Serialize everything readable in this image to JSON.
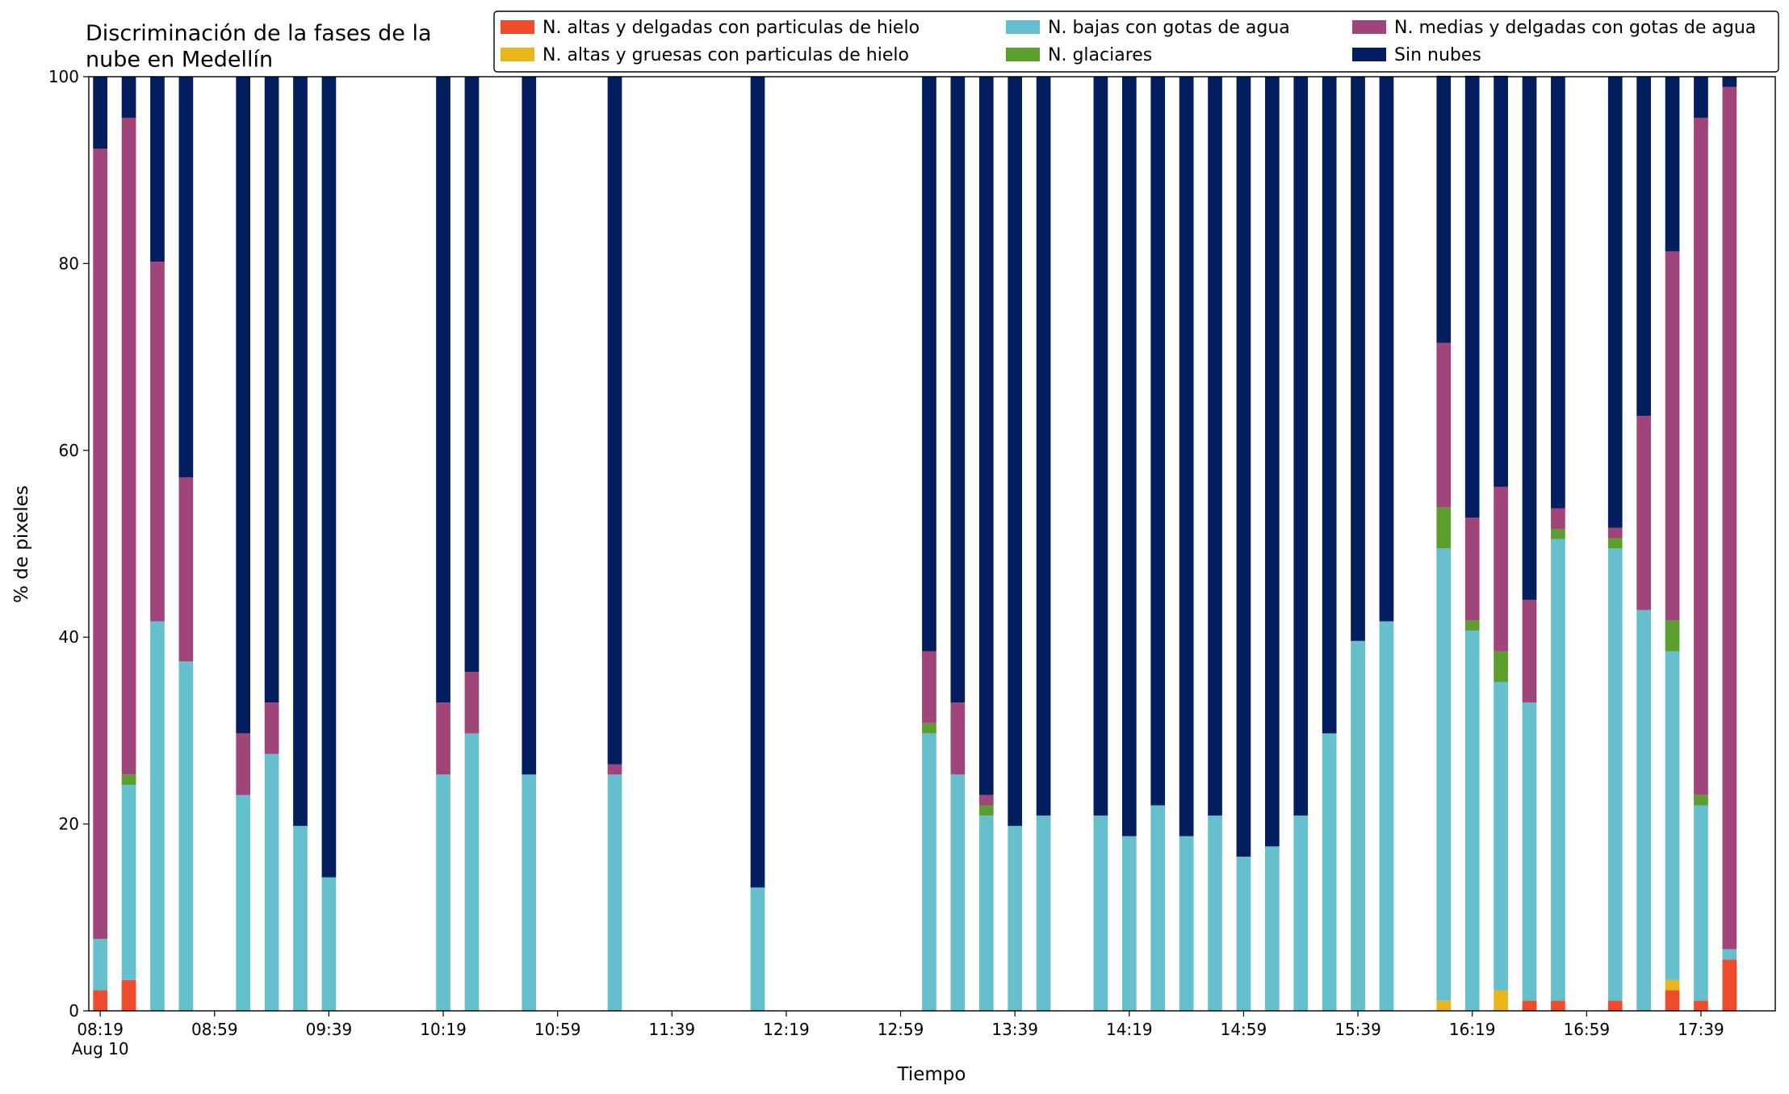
{
  "chart_data": {
    "type": "stacked_bar",
    "title": "Discriminación de la fases de la\nnube en Medellín",
    "xlabel": "Tiempo",
    "ylabel": "% de pixeles",
    "x": [
      "08:19",
      "08:29",
      "08:39",
      "08:49",
      "09:09",
      "09:19",
      "09:29",
      "09:39",
      "10:19",
      "10:29",
      "10:49",
      "11:19",
      "12:09",
      "13:09",
      "13:19",
      "13:29",
      "13:39",
      "13:49",
      "14:09",
      "14:19",
      "14:29",
      "14:39",
      "14:49",
      "14:59",
      "15:09",
      "15:19",
      "15:29",
      "15:39",
      "15:49",
      "16:09",
      "16:19",
      "16:29",
      "16:39",
      "16:49",
      "17:09",
      "17:19",
      "17:29",
      "17:39",
      "17:49"
    ],
    "series": [
      {
        "name": "N. altas y delgadas con particulas de hielo",
        "color": "#ee4c2c",
        "values": [
          2.2,
          3.3,
          0,
          0,
          0,
          0,
          0,
          0,
          0,
          0,
          0,
          0,
          0,
          0,
          0,
          0,
          0,
          0,
          0,
          0,
          0,
          0,
          0,
          0,
          0,
          0,
          0,
          0,
          0,
          0,
          0,
          0,
          1.1,
          1.1,
          1.1,
          0,
          2.2,
          1.1,
          5.5
        ]
      },
      {
        "name": "N. altas y gruesas con particulas de hielo",
        "color": "#e8b61c",
        "values": [
          0,
          0,
          0,
          0,
          0,
          0,
          0,
          0,
          0,
          0,
          0,
          0,
          0,
          0,
          0,
          0,
          0,
          0,
          0,
          0,
          0,
          0,
          0,
          0,
          0,
          0,
          0,
          0,
          0,
          1.1,
          0,
          2.2,
          0,
          0,
          0,
          0,
          1.1,
          0,
          0
        ]
      },
      {
        "name": "N. bajas con gotas de agua",
        "color": "#66bfcc",
        "values": [
          5.5,
          20.9,
          41.7,
          37.4,
          23.1,
          27.5,
          19.8,
          14.3,
          25.3,
          29.7,
          25.3,
          25.3,
          13.2,
          29.7,
          25.3,
          20.9,
          19.8,
          20.9,
          20.9,
          18.7,
          22.0,
          18.7,
          20.9,
          16.5,
          17.6,
          20.9,
          29.7,
          39.6,
          41.7,
          48.4,
          40.7,
          33.0,
          31.9,
          49.4,
          48.4,
          42.9,
          35.2,
          20.9,
          1.1
        ]
      },
      {
        "name": "N. glaciares",
        "color": "#5c9e2e",
        "values": [
          0,
          1.1,
          0,
          0,
          0,
          0,
          0,
          0,
          0,
          0,
          0,
          0,
          0,
          1.1,
          0,
          1.1,
          0,
          0,
          0,
          0,
          0,
          0,
          0,
          0,
          0,
          0,
          0,
          0,
          0,
          4.4,
          1.1,
          3.3,
          0,
          1.1,
          1.1,
          0,
          3.3,
          1.1,
          0
        ]
      },
      {
        "name": "N. medias y delgadas con gotas de agua",
        "color": "#a0457a",
        "values": [
          84.6,
          70.3,
          38.5,
          19.7,
          6.6,
          5.5,
          0,
          0,
          7.7,
          6.6,
          0,
          1.1,
          0,
          7.7,
          7.7,
          1.1,
          0,
          0,
          0,
          0,
          0,
          0,
          0,
          0,
          0,
          0,
          0,
          0,
          0,
          17.6,
          11.0,
          17.6,
          11.0,
          2.2,
          1.1,
          20.8,
          39.5,
          72.5,
          92.3
        ]
      },
      {
        "name": "Sin nubes",
        "color": "#031e5e",
        "values": [
          7.7,
          4.4,
          19.8,
          42.9,
          70.3,
          67.0,
          80.2,
          85.7,
          67.0,
          63.7,
          74.7,
          73.6,
          86.8,
          61.5,
          67.0,
          76.9,
          80.2,
          79.1,
          79.1,
          81.3,
          78.0,
          81.3,
          79.1,
          83.5,
          82.4,
          79.1,
          70.3,
          60.4,
          58.3,
          28.6,
          47.3,
          44.0,
          56.0,
          46.2,
          48.3,
          36.3,
          18.7,
          4.4,
          1.1
        ]
      }
    ],
    "xlim": [
      "08:15",
      "18:05"
    ],
    "xticks": [
      {
        "value": "08:19",
        "label": "08:19\nAug 10"
      },
      "08:59",
      "09:39",
      "10:19",
      "10:59",
      "11:39",
      "12:19",
      "12:59",
      "13:39",
      "14:19",
      "14:59",
      "15:39",
      "16:19",
      "16:59",
      "17:39"
    ],
    "ylim": [
      0,
      100
    ],
    "yticks": [
      0,
      20,
      40,
      60,
      80,
      100
    ],
    "bar_width_minutes": 5,
    "legend": "top right",
    "legend_columns": 3
  }
}
